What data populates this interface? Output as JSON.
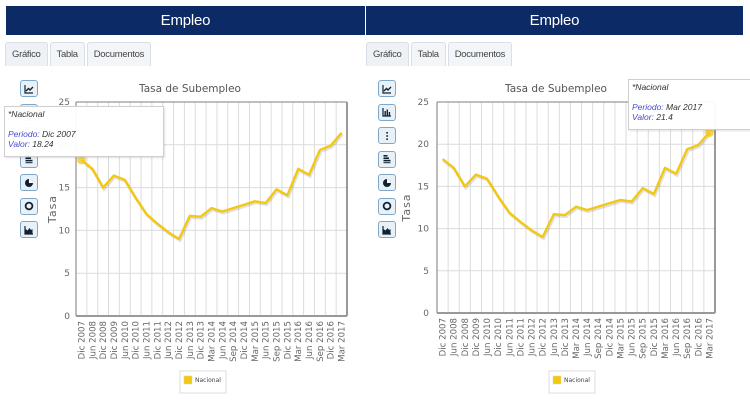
{
  "panels": [
    {
      "header": "Empleo",
      "tabs": [
        "Gráfico",
        "Tabla",
        "Documentos"
      ],
      "active_tab": "Gráfico",
      "toolbar_icons": [
        "line-chart-icon",
        "bar-chart-icon",
        "dot-plot-icon",
        "horizontal-bar-icon",
        "pie-chart-icon",
        "donut-chart-icon",
        "area-chart-icon"
      ],
      "tooltip": {
        "series": "*Nacional",
        "period_label": "Periodo:",
        "period": "Dic 2007",
        "value_label": "Valor:",
        "value": "18.24"
      },
      "highlight_index": 0
    },
    {
      "header": "Empleo",
      "tabs": [
        "Gráfico",
        "Tabla",
        "Documentos"
      ],
      "active_tab": "Gráfico",
      "toolbar_icons": [
        "line-chart-icon",
        "bar-chart-icon",
        "dot-plot-icon",
        "horizontal-bar-icon",
        "pie-chart-icon",
        "donut-chart-icon",
        "area-chart-icon"
      ],
      "tooltip": {
        "series": "*Nacional",
        "period_label": "Periodo:",
        "period": "Mar 2017",
        "value_label": "Valor:",
        "value": "21.4"
      },
      "highlight_index": 24
    }
  ],
  "colors": {
    "header_bg": "#0c2a66",
    "series": "#f2c811",
    "grid": "#dcdcdc",
    "axis": "#999999"
  },
  "chart_data": {
    "type": "line",
    "title": "Tasa de Subempleo",
    "xlabel": "",
    "ylabel": "Tasa",
    "ylim": [
      0,
      25
    ],
    "yticks": [
      0,
      5,
      10,
      15,
      20,
      25
    ],
    "grid": true,
    "legend_position": "bottom-center",
    "categories": [
      "Dic 2007",
      "Jun 2008",
      "Dic 2008",
      "Dic 2009",
      "Jun 2010",
      "Dic 2010",
      "Jun 2011",
      "Dic 2011",
      "Jun 2012",
      "Dic 2012",
      "Jun 2013",
      "Dic 2013",
      "Mar 2014",
      "Jun 2014",
      "Sep 2014",
      "Dic 2014",
      "Mar 2015",
      "Jun 2015",
      "Sep 2015",
      "Dic 2015",
      "Mar 2016",
      "Jun 2016",
      "Sep 2016",
      "Dic 2016",
      "Mar 2017"
    ],
    "series": [
      {
        "name": "Nacional",
        "values": [
          18.24,
          17.2,
          15.0,
          16.4,
          15.9,
          13.8,
          11.9,
          10.8,
          9.8,
          9.0,
          11.7,
          11.6,
          12.6,
          12.2,
          12.6,
          13.0,
          13.4,
          13.2,
          14.8,
          14.1,
          17.2,
          16.5,
          19.4,
          19.9,
          21.4
        ]
      }
    ]
  }
}
